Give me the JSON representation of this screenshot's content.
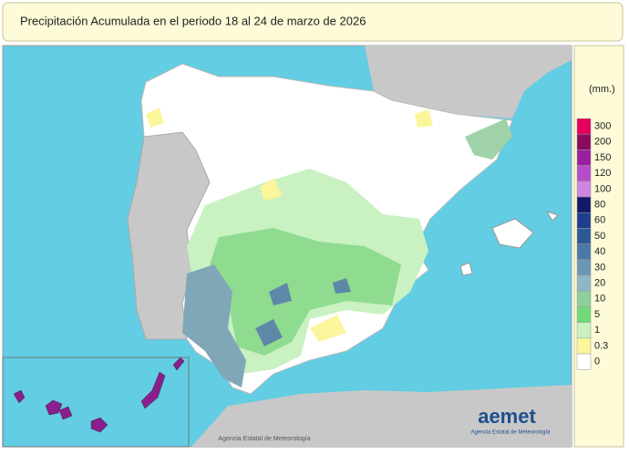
{
  "header": {
    "title": "Precipitación Acumulada en el periodo 18 al 24 de marzo de 2026"
  },
  "legend": {
    "unit": "(mm.)",
    "items": [
      {
        "label": 300,
        "color": "#e4005c"
      },
      {
        "label": 200,
        "color": "#8a0a5e"
      },
      {
        "label": 150,
        "color": "#9a1e9e"
      },
      {
        "label": 120,
        "color": "#b54cc8"
      },
      {
        "label": 100,
        "color": "#cf86e2"
      },
      {
        "label": 80,
        "color": "#141a6a"
      },
      {
        "label": 60,
        "color": "#1f3e8c"
      },
      {
        "label": 50,
        "color": "#2d5a96"
      },
      {
        "label": 40,
        "color": "#4c78a6"
      },
      {
        "label": 30,
        "color": "#6c96b6"
      },
      {
        "label": 20,
        "color": "#8fb6c4"
      },
      {
        "label": 10,
        "color": "#8fcf9c"
      },
      {
        "label": 5,
        "color": "#72d978"
      },
      {
        "label": 1,
        "color": "#c9f1c2"
      },
      {
        "label": 0.3,
        "color": "#fbf59c"
      },
      {
        "label": 0,
        "color": "#ffffff"
      }
    ]
  },
  "logo": {
    "name": "aemet",
    "subtitle": "Agencia Estatal de Meteorología"
  },
  "credit": "Agencia Estatal de Meteorología"
}
